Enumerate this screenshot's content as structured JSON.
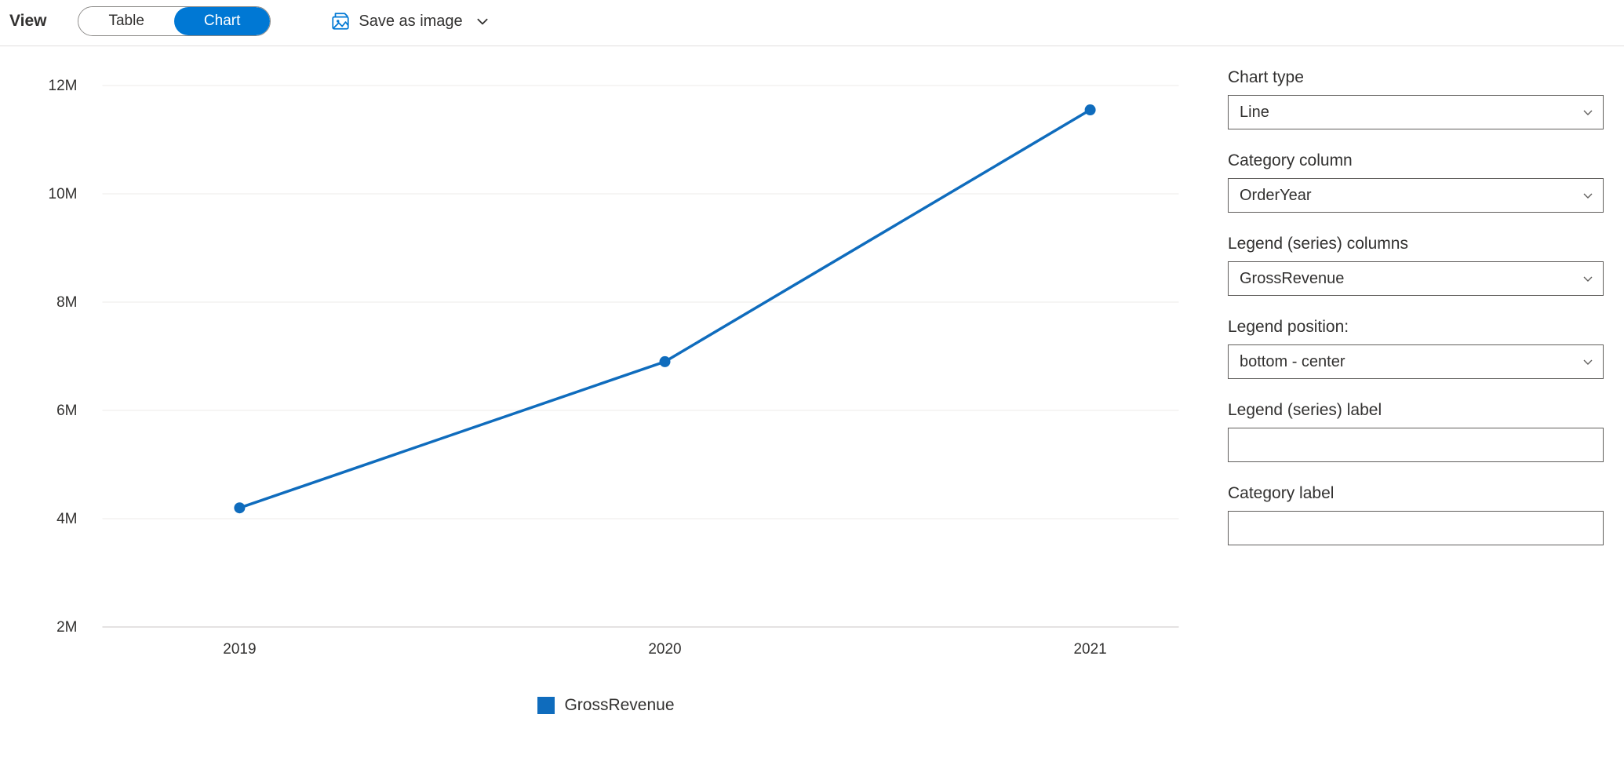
{
  "toolbar": {
    "view_label": "View",
    "table_label": "Table",
    "chart_label": "Chart",
    "save_label": "Save as image"
  },
  "chart": {
    "type": "line",
    "series_name": "GrossRevenue",
    "series_color": "#0f6cbd",
    "categories": [
      "2019",
      "2020",
      "2021"
    ],
    "values": [
      4200000,
      6900000,
      11550000
    ],
    "y_axis": {
      "min": 2000000,
      "max": 12000000,
      "tick_step": 2000000,
      "tick_labels": [
        "2M",
        "4M",
        "6M",
        "8M",
        "10M",
        "12M"
      ]
    },
    "marker_radius": 7,
    "line_width": 3.5,
    "grid_color": "#edebe9",
    "baseline_color": "#c8c6c4",
    "background_color": "#ffffff",
    "axis_font_size": 19,
    "legend_font_size": 21,
    "legend_position": "bottom-center"
  },
  "panel": {
    "chart_type": {
      "label": "Chart type",
      "value": "Line"
    },
    "category_column": {
      "label": "Category column",
      "value": "OrderYear"
    },
    "legend_columns": {
      "label": "Legend (series) columns",
      "value": "GrossRevenue"
    },
    "legend_position": {
      "label": "Legend position:",
      "value": "bottom - center"
    },
    "series_label": {
      "label": "Legend (series) label",
      "value": ""
    },
    "category_label": {
      "label": "Category label",
      "value": ""
    }
  }
}
